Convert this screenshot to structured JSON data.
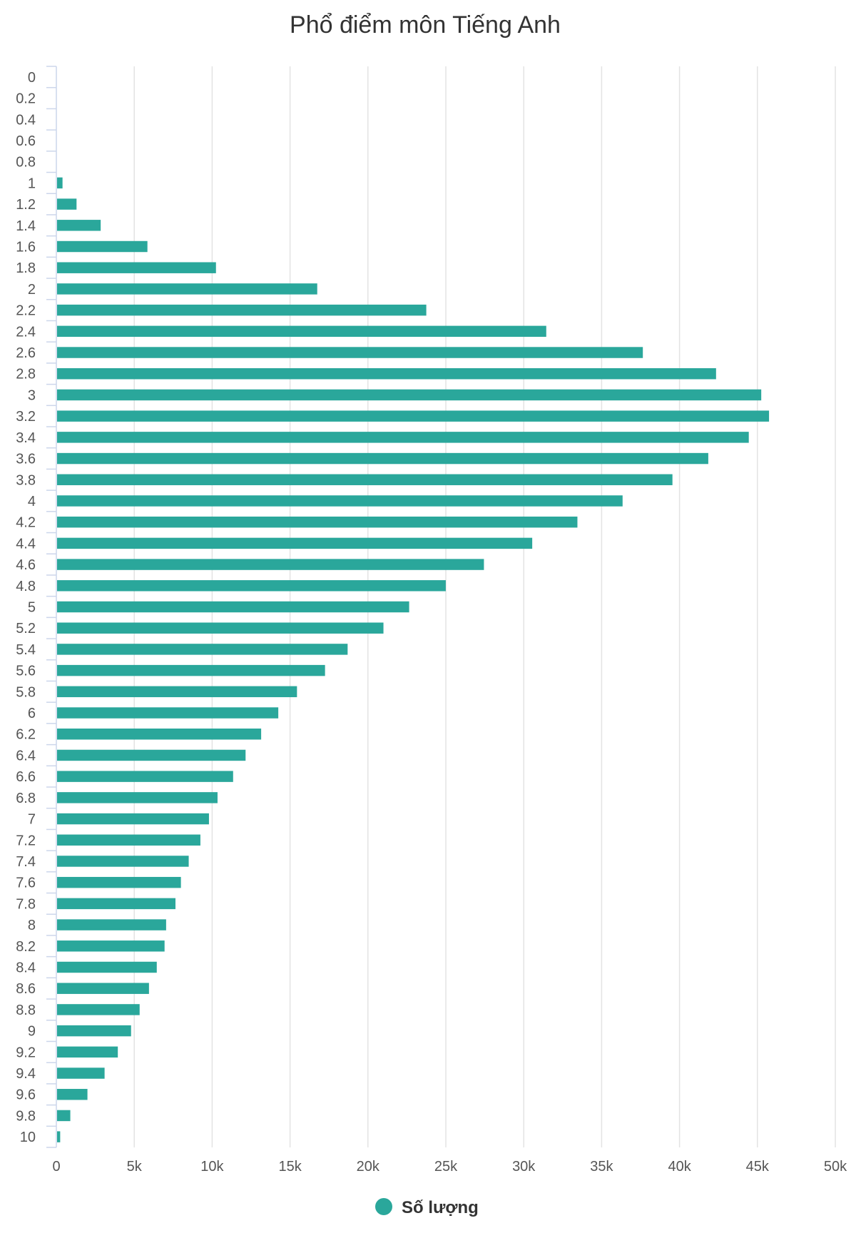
{
  "chart_data": {
    "type": "bar",
    "orientation": "horizontal",
    "title": "Phổ điểm môn Tiếng Anh",
    "categories": [
      "0",
      "0.2",
      "0.4",
      "0.6",
      "0.8",
      "1",
      "1.2",
      "1.4",
      "1.6",
      "1.8",
      "2",
      "2.2",
      "2.4",
      "2.6",
      "2.8",
      "3",
      "3.2",
      "3.4",
      "3.6",
      "3.8",
      "4",
      "4.2",
      "4.4",
      "4.6",
      "4.8",
      "5",
      "5.2",
      "5.4",
      "5.6",
      "5.8",
      "6",
      "6.2",
      "6.4",
      "6.6",
      "6.8",
      "7",
      "7.2",
      "7.4",
      "7.6",
      "7.8",
      "8",
      "8.2",
      "8.4",
      "8.6",
      "8.8",
      "9",
      "9.2",
      "9.4",
      "9.6",
      "9.8",
      "10"
    ],
    "series": [
      {
        "name": "Số lượng",
        "color": "#2aa79b",
        "values": [
          0,
          0,
          0,
          0,
          0,
          350,
          1250,
          2800,
          5800,
          10200,
          16700,
          23700,
          31400,
          37600,
          42300,
          45200,
          45700,
          44400,
          41800,
          39500,
          36300,
          33400,
          30500,
          27400,
          24950,
          22600,
          20950,
          18650,
          17200,
          15400,
          14200,
          13100,
          12100,
          11300,
          10300,
          9750,
          9200,
          8450,
          7950,
          7600,
          7000,
          6900,
          6400,
          5900,
          5300,
          4750,
          3900,
          3050,
          1950,
          850,
          200
        ]
      }
    ],
    "xlim": [
      0,
      50000
    ],
    "x_ticks": [
      {
        "value": 0,
        "label": "0"
      },
      {
        "value": 5000,
        "label": "5k"
      },
      {
        "value": 10000,
        "label": "10k"
      },
      {
        "value": 15000,
        "label": "15k"
      },
      {
        "value": 20000,
        "label": "20k"
      },
      {
        "value": 25000,
        "label": "25k"
      },
      {
        "value": 30000,
        "label": "30k"
      },
      {
        "value": 35000,
        "label": "35k"
      },
      {
        "value": 40000,
        "label": "40k"
      },
      {
        "value": 45000,
        "label": "45k"
      },
      {
        "value": 50000,
        "label": "50k"
      }
    ],
    "grid": "vertical",
    "legend": "bottom-center"
  }
}
